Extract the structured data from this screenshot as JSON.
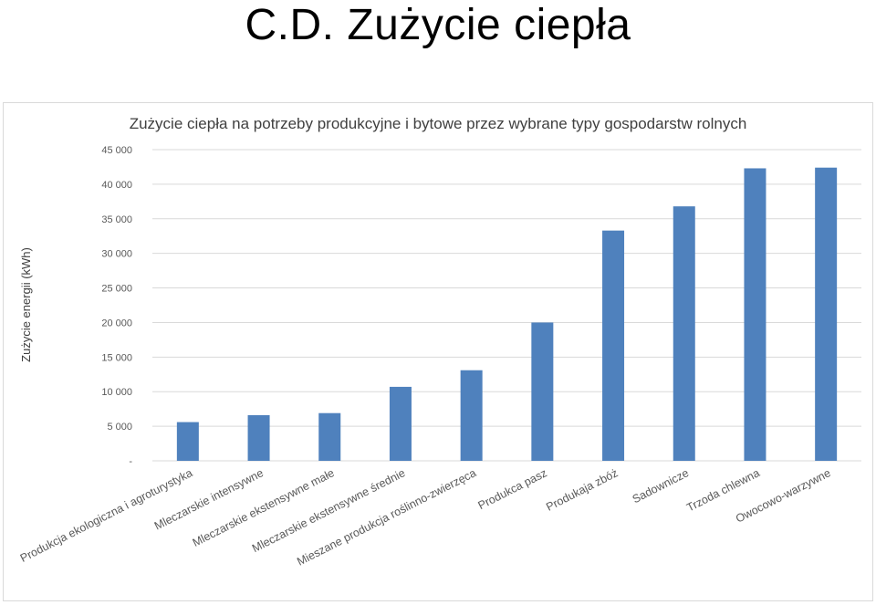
{
  "slide": {
    "title": "C.D. Zużycie ciepła"
  },
  "chart_data": {
    "type": "bar",
    "title": "Zużycie ciepła na potrzeby produkcyjne i bytowe przez wybrane typy gospodarstw rolnych",
    "ylabel": "Zużycie energii (kWh)",
    "xlabel": "",
    "ylim": [
      0,
      45000
    ],
    "yticks": [
      0,
      5000,
      10000,
      15000,
      20000,
      25000,
      30000,
      35000,
      40000,
      45000
    ],
    "ytick_labels": [
      "-",
      "5 000",
      "10 000",
      "15 000",
      "20 000",
      "25 000",
      "30 000",
      "35 000",
      "40 000",
      "45 000"
    ],
    "grid": true,
    "legend": "none",
    "bar_color": "#4f81bd",
    "categories": [
      "Produkcja ekologiczna i agroturystyka",
      "Mleczarskie intensywne",
      "Mleczarskie ekstensywne małe",
      "Mleczarskie ekstensywne średnie",
      "Mieszane produkcja roślinno-zwierzęca",
      "Produkca pasz",
      "Produkaja zbóż",
      "Sadownicze",
      "Trzoda chlewna",
      "Owocowo-warzywne"
    ],
    "values": [
      5600,
      6600,
      6900,
      10700,
      13100,
      20000,
      33300,
      36800,
      42300,
      42400
    ]
  }
}
